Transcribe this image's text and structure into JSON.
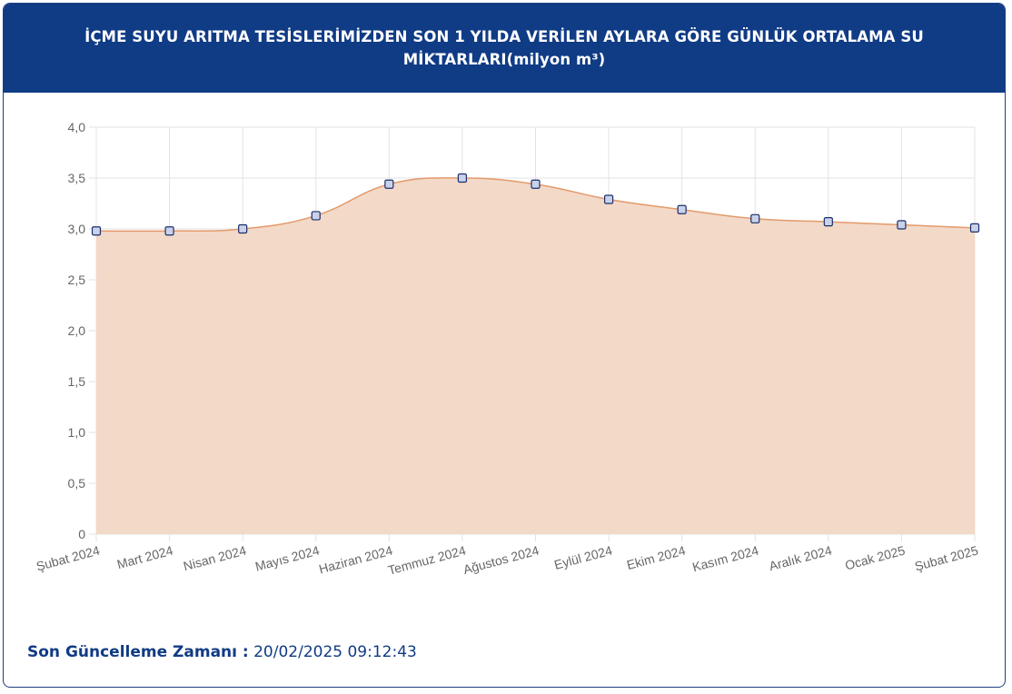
{
  "header": {
    "title": "İÇME SUYU ARITMA TESİSLERİMİZDEN SON 1 YILDA VERİLEN AYLARA GÖRE GÜNLÜK ORTALAMA SU MİKTARLARI(milyon m³)"
  },
  "footer": {
    "label": "Son Güncelleme Zamanı :",
    "value": "20/02/2025 09:12:43"
  },
  "colors": {
    "header_bg": "#103b85",
    "area_fill": "#f3d9c8",
    "line": "#e39a6b",
    "point_fill": "#c9d2e8",
    "point_stroke": "#1b2f6b"
  },
  "chart_data": {
    "type": "area",
    "categories": [
      "Şubat 2024",
      "Mart 2024",
      "Nisan 2024",
      "Mayıs 2024",
      "Haziran 2024",
      "Temmuz 2024",
      "Ağustos 2024",
      "Eylül 2024",
      "Ekim 2024",
      "Kasım 2024",
      "Aralık 2024",
      "Ocak 2025",
      "Şubat 2025"
    ],
    "values": [
      2.98,
      2.98,
      3.0,
      3.13,
      3.44,
      3.5,
      3.44,
      3.29,
      3.19,
      3.1,
      3.07,
      3.04,
      3.01
    ],
    "ylim": [
      0,
      4.0
    ],
    "yticks": [
      "0",
      "0,5",
      "1,0",
      "1,5",
      "2,0",
      "2,5",
      "3,0",
      "3,5",
      "4,0"
    ],
    "ytick_values": [
      0,
      0.5,
      1.0,
      1.5,
      2.0,
      2.5,
      3.0,
      3.5,
      4.0
    ],
    "grid": true,
    "legend": "none"
  }
}
